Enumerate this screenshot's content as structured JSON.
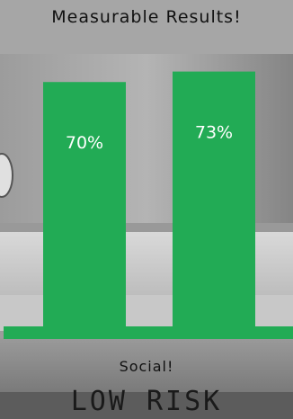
{
  "chart_data": {
    "type": "bar",
    "title": "Measurable Results!",
    "xlabel": "Social!",
    "categories": [
      "",
      ""
    ],
    "values": [
      70,
      73
    ],
    "labels": [
      "70%",
      "73%"
    ],
    "bar_color": "#22ab55",
    "ylim": [
      0,
      85
    ],
    "grid": false
  },
  "footer": {
    "text": "LOW RISK"
  }
}
